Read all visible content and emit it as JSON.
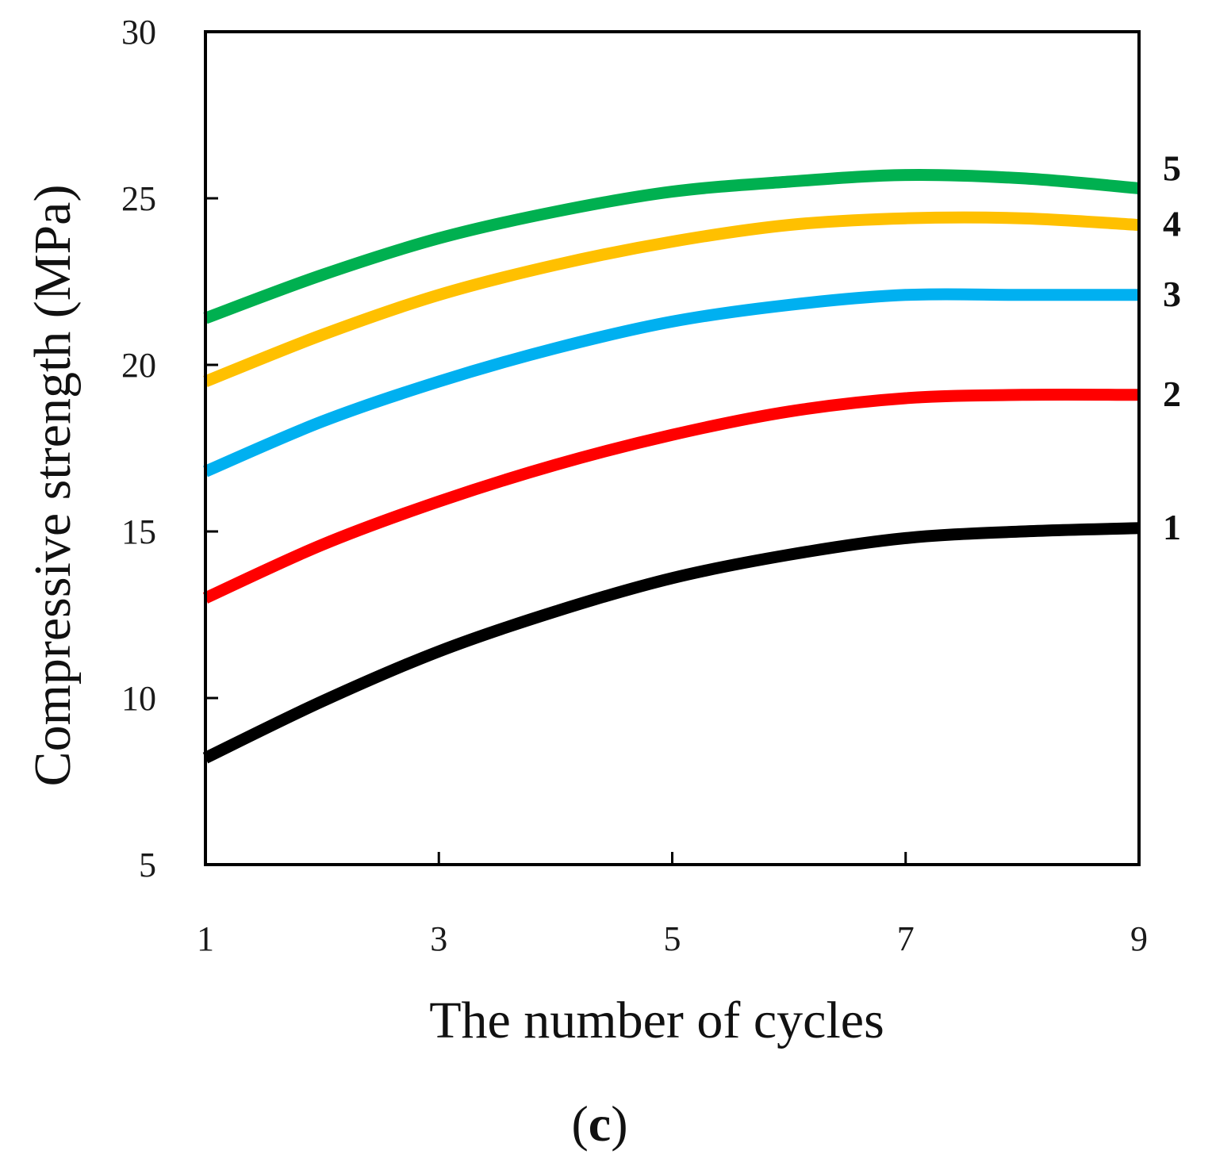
{
  "chart_data": {
    "type": "line",
    "xlabel": "The number of cycles",
    "ylabel": "Compressive strength (MPa)",
    "xlim": [
      1,
      9
    ],
    "ylim": [
      5,
      30
    ],
    "x_ticks": [
      "1",
      "3",
      "5",
      "7",
      "9"
    ],
    "y_ticks": [
      "5",
      "10",
      "15",
      "20",
      "25",
      "30"
    ],
    "grid": false,
    "panel_label": {
      "open": "(",
      "letter": "c",
      "close": ")"
    },
    "series": [
      {
        "name": "1",
        "color": "#000000",
        "x": [
          1,
          2,
          3,
          4,
          5,
          6,
          7,
          8,
          9
        ],
        "values": [
          8.2,
          9.9,
          11.4,
          12.6,
          13.6,
          14.3,
          14.8,
          15.0,
          15.1
        ]
      },
      {
        "name": "2",
        "color": "#ff0000",
        "x": [
          1,
          2,
          3,
          4,
          5,
          6,
          7,
          8,
          9
        ],
        "values": [
          13.0,
          14.6,
          15.9,
          17.0,
          17.9,
          18.6,
          19.0,
          19.1,
          19.1
        ]
      },
      {
        "name": "3",
        "color": "#00b0f0",
        "x": [
          1,
          2,
          3,
          4,
          5,
          6,
          7,
          8,
          9
        ],
        "values": [
          16.8,
          18.3,
          19.5,
          20.5,
          21.3,
          21.8,
          22.1,
          22.1,
          22.1
        ]
      },
      {
        "name": "4",
        "color": "#ffc000",
        "x": [
          1,
          2,
          3,
          4,
          5,
          6,
          7,
          8,
          9
        ],
        "values": [
          19.5,
          20.9,
          22.1,
          23.0,
          23.7,
          24.2,
          24.4,
          24.4,
          24.2
        ]
      },
      {
        "name": "5",
        "color": "#00b050",
        "x": [
          1,
          2,
          3,
          4,
          5,
          6,
          7,
          8,
          9
        ],
        "values": [
          21.4,
          22.7,
          23.8,
          24.6,
          25.2,
          25.5,
          25.7,
          25.6,
          25.3
        ]
      }
    ]
  }
}
